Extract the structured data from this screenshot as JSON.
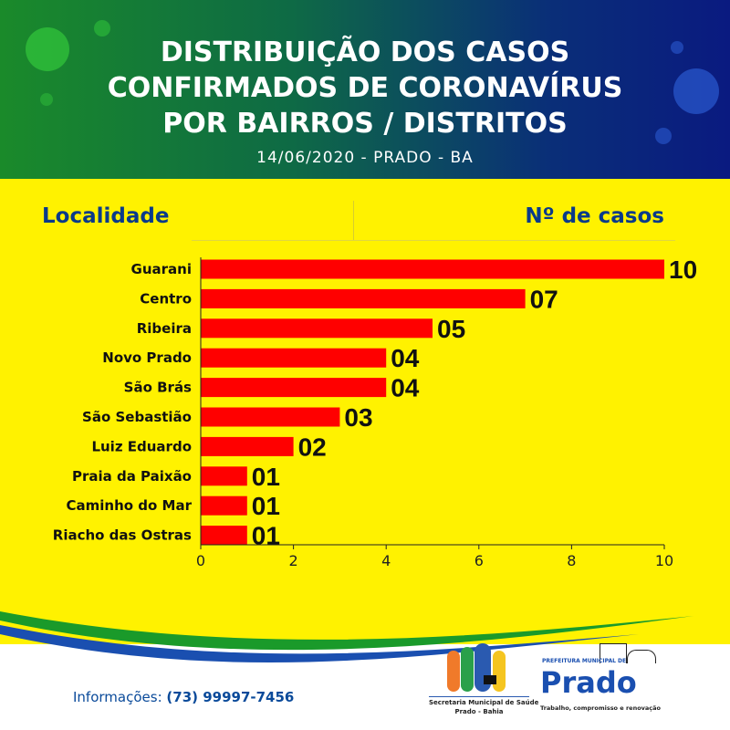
{
  "header": {
    "title_lines": [
      "DISTRIBUIÇÃO DOS CASOS",
      "CONFIRMADOS DE CORONAVÍRUS",
      "POR BAIRROS / DISTRITOS"
    ],
    "subtitle": "14/06/2020 - PRADO - BA"
  },
  "columns": {
    "left": "Localidade",
    "right": "Nº de casos"
  },
  "chart_data": {
    "type": "bar",
    "orientation": "horizontal",
    "categories": [
      "Guarani",
      "Centro",
      "Ribeira",
      "Novo Prado",
      "São Brás",
      "São Sebastião",
      "Luiz Eduardo",
      "Praia da Paixão",
      "Caminho do Mar",
      "Riacho das Ostras"
    ],
    "values": [
      10,
      7,
      5,
      4,
      4,
      3,
      2,
      1,
      1,
      1
    ],
    "data_labels": [
      "10",
      "07",
      "05",
      "04",
      "04",
      "03",
      "02",
      "01",
      "01",
      "01"
    ],
    "xlim": [
      0,
      10
    ],
    "x_ticks": [
      "0",
      "2",
      "4",
      "6",
      "8",
      "10"
    ],
    "bar_color": "#ff0000",
    "grid": false
  },
  "footer": {
    "info_label": "Informações:",
    "phone": "(73) 99997-7456",
    "health_logo_line1": "Secretaria Municipal de Saúde",
    "health_logo_line2": "Prado - Bahia",
    "city_logo_top": "PREFEITURA MUNICIPAL DE",
    "city_logo_name": "Prado",
    "city_logo_slogan": "Trabalho, compromisso e renovação"
  }
}
